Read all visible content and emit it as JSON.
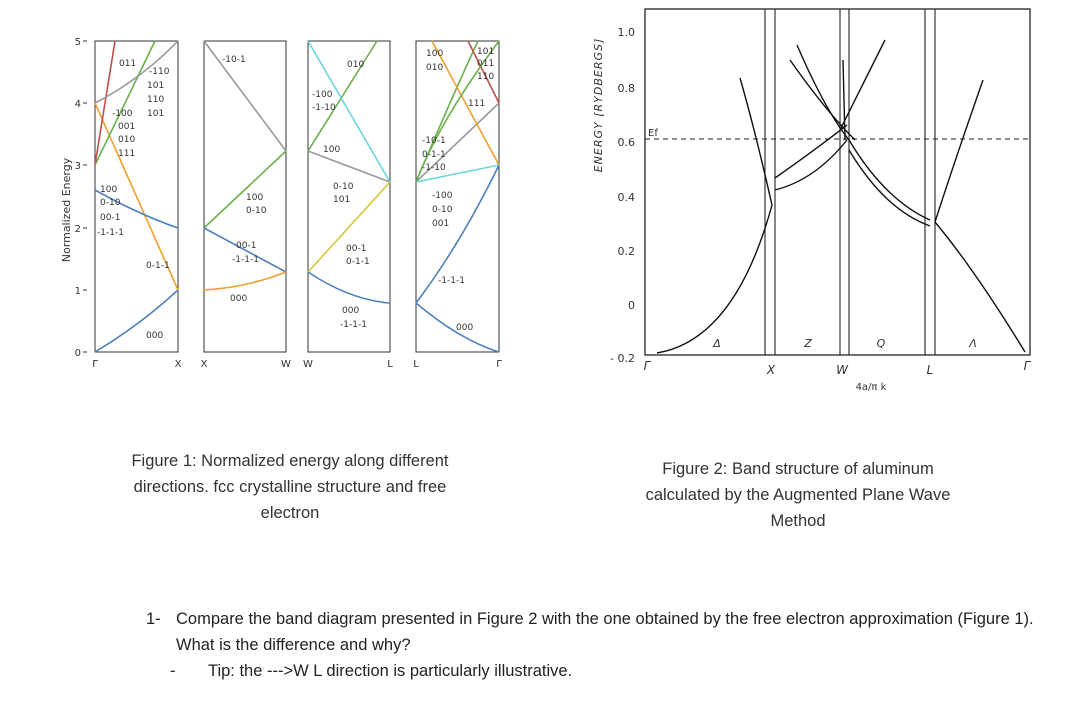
{
  "figure1": {
    "ylabel": "Normalized Energy",
    "yticks": [
      "0",
      "1",
      "2",
      "3",
      "4",
      "5"
    ],
    "xticks": [
      "Γ",
      "X",
      "X",
      "W",
      "W",
      "L",
      "L",
      "Γ"
    ],
    "panel_labels": {
      "gx": [
        "011",
        "-110",
        "101",
        "110",
        "-100",
        "101",
        "001",
        "010",
        "111",
        "100",
        "0-10",
        "00-1",
        "-1-1-1",
        "0-1-1",
        "000"
      ],
      "xw": [
        "-10-1",
        "100",
        "0-10",
        "00-1",
        "-1-1-1",
        "000"
      ],
      "wl": [
        "010",
        "-100",
        "-1-10",
        "100",
        "0-10",
        "101",
        "00-1",
        "0-1-1",
        "000",
        "-1-1-1"
      ],
      "lg": [
        "100",
        "010",
        "101",
        "011",
        "110",
        "111",
        "-10-1",
        "0-1-1",
        "-1-10",
        "-100",
        "0-10",
        "001",
        "-1-1-1",
        "000"
      ]
    },
    "caption": "Figure 1: Normalized energy along different directions. fcc crystalline structure and free electron"
  },
  "figure2": {
    "ylabel": "ENERGY [RYDBERGS]",
    "yticks": [
      "1.0",
      "0.8",
      "0.6",
      "0.4",
      "0.2",
      "0",
      "- 0.2"
    ],
    "xticks": [
      "Γ",
      "X",
      "W",
      "L",
      "Γ"
    ],
    "direction_labels": [
      "Δ",
      "Z",
      "Q",
      "Λ"
    ],
    "fermi_label": "Ef",
    "k_label": "4a/π k",
    "caption": "Figure 2: Band structure of aluminum calculated by the Augmented Plane Wave Method"
  },
  "question": {
    "number": "1-",
    "text": "Compare the band diagram presented in Figure 2 with the one obtained by the free electron approximation (Figure 1). What is the difference and why?",
    "tip_dash": "-",
    "tip": "Tip: the --->W L direction is particularly illustrative."
  }
}
